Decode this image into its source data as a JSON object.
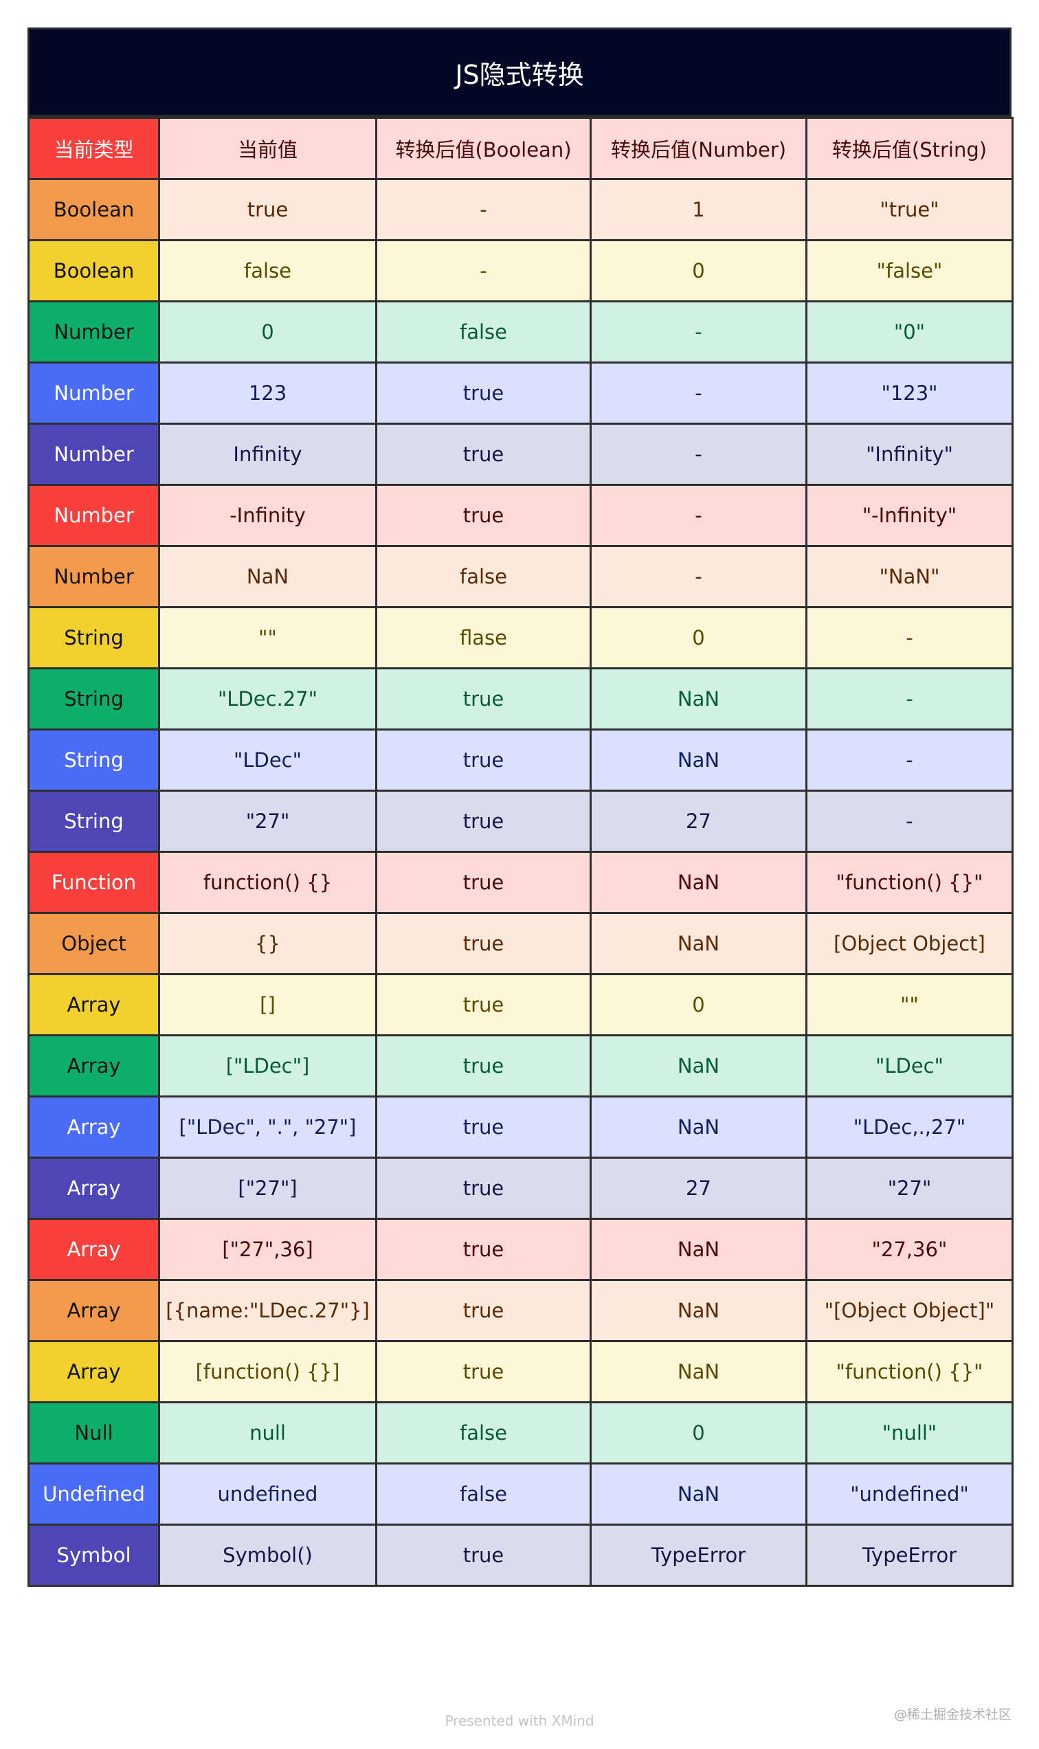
{
  "title": "JS隐式转换",
  "headers": [
    "当前类型",
    "当前值",
    "转换后值(Boolean)",
    "转换后值(Number)",
    "转换后值(String)"
  ],
  "rows": [
    {
      "type": "Boolean",
      "value": "true",
      "boolean": "-",
      "number": "1",
      "string": "\"true\""
    },
    {
      "type": "Boolean",
      "value": "false",
      "boolean": "-",
      "number": "0",
      "string": "\"false\""
    },
    {
      "type": "Number",
      "value": "0",
      "boolean": "false",
      "number": "-",
      "string": "\"0\""
    },
    {
      "type": "Number",
      "value": "123",
      "boolean": "true",
      "number": "-",
      "string": "\"123\""
    },
    {
      "type": "Number",
      "value": "Infinity",
      "boolean": "true",
      "number": "-",
      "string": "\"Infinity\""
    },
    {
      "type": "Number",
      "value": "-Infinity",
      "boolean": "true",
      "number": "-",
      "string": "\"-Infinity\""
    },
    {
      "type": "Number",
      "value": "NaN",
      "boolean": "false",
      "number": "-",
      "string": "\"NaN\""
    },
    {
      "type": "String",
      "value": "\"\"",
      "boolean": "flase",
      "number": "0",
      "string": "-"
    },
    {
      "type": "String",
      "value": "\"LDec.27\"",
      "boolean": "true",
      "number": "NaN",
      "string": "-"
    },
    {
      "type": "String",
      "value": "\"LDec\"",
      "boolean": "true",
      "number": "NaN",
      "string": "-"
    },
    {
      "type": "String",
      "value": "\"27\"",
      "boolean": "true",
      "number": "27",
      "string": "-"
    },
    {
      "type": "Function",
      "value": "function() {}",
      "boolean": "true",
      "number": "NaN",
      "string": "\"function() {}\""
    },
    {
      "type": "Object",
      "value": "{}",
      "boolean": "true",
      "number": "NaN",
      "string": "[Object Object]"
    },
    {
      "type": "Array",
      "value": "[]",
      "boolean": "true",
      "number": "0",
      "string": "\"\""
    },
    {
      "type": "Array",
      "value": "[\"LDec\"]",
      "boolean": "true",
      "number": "NaN",
      "string": "\"LDec\""
    },
    {
      "type": "Array",
      "value": "[\"LDec\", \".\", \"27\"]",
      "boolean": "true",
      "number": "NaN",
      "string": "\"LDec,.,27\""
    },
    {
      "type": "Array",
      "value": "[\"27\"]",
      "boolean": "true",
      "number": "27",
      "string": "\"27\""
    },
    {
      "type": "Array",
      "value": "[\"27\",36]",
      "boolean": "true",
      "number": "NaN",
      "string": "\"27,36\""
    },
    {
      "type": "Array",
      "value": "[{name:\"LDec.27\"}]",
      "boolean": "true",
      "number": "NaN",
      "string": "\"[Object Object]\""
    },
    {
      "type": "Array",
      "value": "[function() {}]",
      "boolean": "true",
      "number": "NaN",
      "string": "\"function() {}\""
    },
    {
      "type": "Null",
      "value": "null",
      "boolean": "false",
      "number": "0",
      "string": "\"null\""
    },
    {
      "type": "Undefined",
      "value": "undefined",
      "boolean": "false",
      "number": "NaN",
      "string": "\"undefined\""
    },
    {
      "type": "Symbol",
      "value": "Symbol()",
      "boolean": "true",
      "number": "TypeError",
      "string": "TypeError"
    }
  ],
  "palette": [
    {
      "strong": "#f73f3b",
      "light": "#fdd9d8",
      "text": "#4a0b0b",
      "strong_text": "#ffffff"
    },
    {
      "strong": "#f49b4b",
      "light": "#fde9dc",
      "text": "#5a2a06",
      "strong_text": "#111111"
    },
    {
      "strong": "#f2d12f",
      "light": "#fdf6d7",
      "text": "#5a4a00",
      "strong_text": "#111111"
    },
    {
      "strong": "#0daf6a",
      "light": "#d0f1e3",
      "text": "#065c37",
      "strong_text": "#111111"
    },
    {
      "strong": "#4a6cf8",
      "light": "#dbe1fd",
      "text": "#101e5c",
      "strong_text": "#ffffff"
    },
    {
      "strong": "#4c46b6",
      "light": "#dbdbee",
      "text": "#171547",
      "strong_text": "#ffffff"
    }
  ],
  "footer": "Presented with XMind",
  "watermark": "@稀土掘金技术社区"
}
